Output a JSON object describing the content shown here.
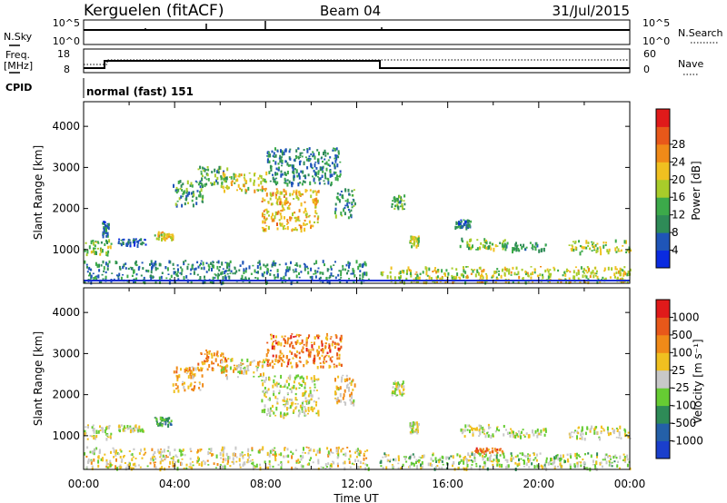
{
  "header": {
    "station": "Kerguelen (fitACF)",
    "beam": "Beam 04",
    "date": "31/Jul/2015"
  },
  "top_panels": {
    "nsky_label": "N.Sky",
    "nsky_ticks": [
      "10^5",
      "10^0"
    ],
    "nsearch_ticks": [
      "10^5",
      "10^0"
    ],
    "nsearch_label": "N.Search",
    "freq_label": "Freq.",
    "freq_unit": "[MHz]",
    "freq_ticks": [
      "18",
      "8"
    ],
    "nave_ticks": [
      "60",
      "0"
    ],
    "nave_label": "Nave",
    "cpid_label": "CPID",
    "cpid_value": "normal (fast) 151"
  },
  "time_axis": {
    "ticks": [
      "00:00",
      "04:00",
      "08:00",
      "12:00",
      "16:00",
      "20:00",
      "00:00"
    ],
    "label": "Time UT"
  },
  "chart_data": [
    {
      "type": "heatmap",
      "title": "",
      "xlabel": "Time UT",
      "ylabel": "Slant Range [km]",
      "x_range_hours": [
        0,
        24
      ],
      "ylim": [
        180,
        4600
      ],
      "y_ticks": [
        "1000",
        "2000",
        "3000",
        "4000"
      ],
      "colorbar": {
        "label": "Power [dB]",
        "ticks": [
          "4",
          "8",
          "12",
          "16",
          "20",
          "24",
          "28"
        ],
        "colors": [
          "#0a2be0",
          "#1f55b8",
          "#2e8b57",
          "#3caa4a",
          "#a8cc2a",
          "#f0c020",
          "#f08a18",
          "#e8581a",
          "#e01a1a"
        ]
      },
      "regions": [
        {
          "t0": 0.0,
          "t1": 1.2,
          "r0": 900,
          "r1": 1300,
          "v": 0.45
        },
        {
          "t0": 0.8,
          "t1": 1.1,
          "r0": 1350,
          "r1": 1700,
          "v": 0.2
        },
        {
          "t0": 1.5,
          "t1": 2.7,
          "r0": 1130,
          "r1": 1280,
          "v": 0.15
        },
        {
          "t0": 3.1,
          "t1": 3.9,
          "r0": 1270,
          "r1": 1470,
          "v": 0.55
        },
        {
          "t0": 3.9,
          "t1": 5.2,
          "r0": 2100,
          "r1": 2700,
          "v": 0.3
        },
        {
          "t0": 5.0,
          "t1": 6.3,
          "r0": 2600,
          "r1": 3050,
          "v": 0.35
        },
        {
          "t0": 6.0,
          "t1": 8.0,
          "r0": 2450,
          "r1": 2900,
          "v": 0.55
        },
        {
          "t0": 7.8,
          "t1": 10.3,
          "r0": 1500,
          "r1": 2500,
          "v": 0.65
        },
        {
          "t0": 8.0,
          "t1": 11.3,
          "r0": 2600,
          "r1": 3500,
          "v": 0.25
        },
        {
          "t0": 11.0,
          "t1": 11.9,
          "r0": 1800,
          "r1": 2500,
          "v": 0.3
        },
        {
          "t0": 13.5,
          "t1": 14.1,
          "r0": 2000,
          "r1": 2350,
          "v": 0.35
        },
        {
          "t0": 14.3,
          "t1": 14.7,
          "r0": 1100,
          "r1": 1350,
          "v": 0.5
        },
        {
          "t0": 16.3,
          "t1": 17.0,
          "r0": 1550,
          "r1": 1750,
          "v": 0.2
        },
        {
          "t0": 16.5,
          "t1": 18.5,
          "r0": 1000,
          "r1": 1300,
          "v": 0.45
        },
        {
          "t0": 18.5,
          "t1": 20.3,
          "r0": 1000,
          "r1": 1200,
          "v": 0.3
        },
        {
          "t0": 21.3,
          "t1": 24.0,
          "r0": 950,
          "r1": 1250,
          "v": 0.5
        },
        {
          "t0": 0.0,
          "t1": 12.5,
          "r0": 220,
          "r1": 750,
          "v": 0.25
        },
        {
          "t0": 13.0,
          "t1": 24.0,
          "r0": 220,
          "r1": 600,
          "v": 0.55
        }
      ]
    },
    {
      "type": "heatmap",
      "title": "",
      "xlabel": "Time UT",
      "ylabel": "Slant Range [km]",
      "x_range_hours": [
        0,
        24
      ],
      "ylim": [
        180,
        4600
      ],
      "y_ticks": [
        "1000",
        "2000",
        "3000",
        "4000"
      ],
      "colorbar": {
        "label": "Velocity [m s⁻¹]",
        "ticks": [
          "1000",
          "500",
          "100",
          "25",
          "-25",
          "-100",
          "-500",
          "-1000"
        ],
        "colors": [
          "#1a3fcc",
          "#2460a8",
          "#2e8b57",
          "#66cc33",
          "#c8c8c8",
          "#f0c020",
          "#f08a18",
          "#e8581a",
          "#e01a1a"
        ]
      },
      "regions": [
        {
          "t0": 0.0,
          "t1": 1.2,
          "r0": 900,
          "r1": 1300,
          "v": 0.5
        },
        {
          "t0": 1.5,
          "t1": 2.7,
          "r0": 1130,
          "r1": 1280,
          "v": 0.5
        },
        {
          "t0": 3.1,
          "t1": 3.9,
          "r0": 1270,
          "r1": 1470,
          "v": 0.3
        },
        {
          "t0": 3.9,
          "t1": 5.2,
          "r0": 2100,
          "r1": 2700,
          "v": 0.7
        },
        {
          "t0": 5.0,
          "t1": 6.3,
          "r0": 2600,
          "r1": 3100,
          "v": 0.75
        },
        {
          "t0": 6.0,
          "t1": 8.0,
          "r0": 2450,
          "r1": 2900,
          "v": 0.55
        },
        {
          "t0": 7.8,
          "t1": 10.3,
          "r0": 1500,
          "r1": 2500,
          "v": 0.5
        },
        {
          "t0": 8.0,
          "t1": 11.3,
          "r0": 2700,
          "r1": 3500,
          "v": 0.8
        },
        {
          "t0": 11.0,
          "t1": 11.9,
          "r0": 1800,
          "r1": 2500,
          "v": 0.6
        },
        {
          "t0": 13.5,
          "t1": 14.1,
          "r0": 2000,
          "r1": 2350,
          "v": 0.5
        },
        {
          "t0": 14.3,
          "t1": 14.7,
          "r0": 1100,
          "r1": 1350,
          "v": 0.5
        },
        {
          "t0": 16.5,
          "t1": 18.5,
          "r0": 1000,
          "r1": 1300,
          "v": 0.5
        },
        {
          "t0": 17.0,
          "t1": 18.4,
          "r0": 600,
          "r1": 720,
          "v": 0.8
        },
        {
          "t0": 18.5,
          "t1": 20.3,
          "r0": 1000,
          "r1": 1200,
          "v": 0.5
        },
        {
          "t0": 21.3,
          "t1": 24.0,
          "r0": 950,
          "r1": 1250,
          "v": 0.5
        },
        {
          "t0": 0.0,
          "t1": 12.5,
          "r0": 220,
          "r1": 750,
          "v": 0.55
        },
        {
          "t0": 13.0,
          "t1": 24.0,
          "r0": 220,
          "r1": 600,
          "v": 0.45
        }
      ]
    }
  ]
}
